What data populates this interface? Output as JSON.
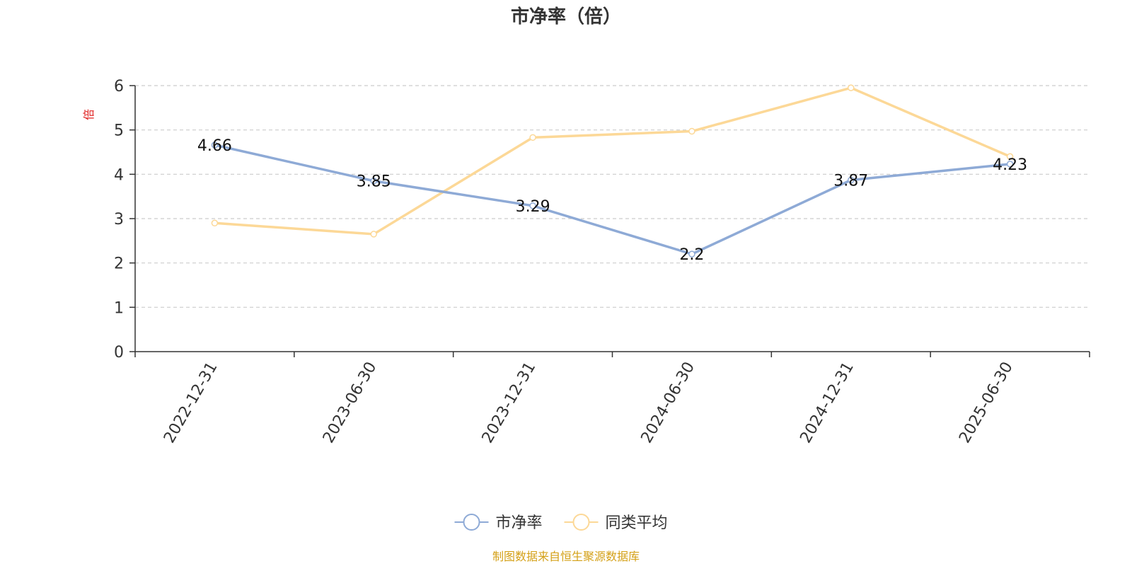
{
  "chart_data": {
    "type": "line",
    "title": "市净率（倍）",
    "ylabel": "倍",
    "xlabel": "",
    "categories": [
      "2022-12-31",
      "2023-06-30",
      "2023-12-31",
      "2024-06-30",
      "2024-12-31",
      "2025-06-30"
    ],
    "ylim": [
      0,
      6
    ],
    "yticks": [
      "0",
      "1",
      "2",
      "3",
      "4",
      "5",
      "6"
    ],
    "grid": true,
    "legend_position": "bottom-center",
    "series": [
      {
        "name": "市净率",
        "values": [
          4.66,
          3.85,
          3.29,
          2.2,
          3.87,
          4.23
        ],
        "data_labels": [
          "4.66",
          "3.85",
          "3.29",
          "2.2",
          "3.87",
          "4.23"
        ],
        "color": "#8eaad6"
      },
      {
        "name": "同类平均",
        "values": [
          2.9,
          2.65,
          4.83,
          4.97,
          5.95,
          4.4
        ],
        "color": "#fcd897"
      }
    ]
  },
  "source": "制图数据来自恒生聚源数据库",
  "colors": {
    "axis": "#333333",
    "grid": "#cccccc",
    "unit": "#e0201f",
    "source": "#d4a017"
  }
}
